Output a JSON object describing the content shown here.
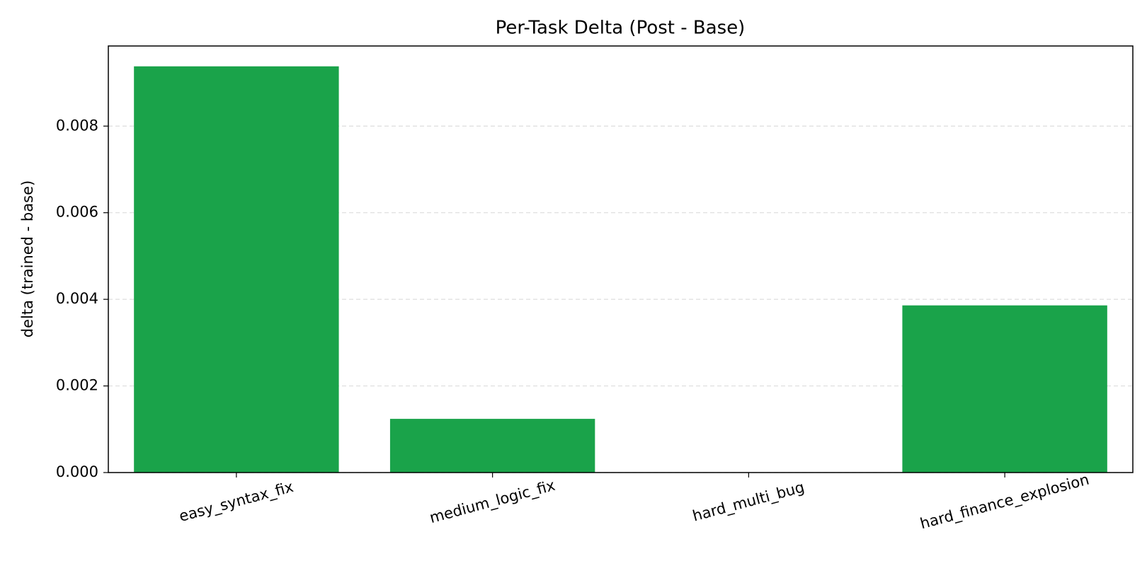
{
  "chart_data": {
    "type": "bar",
    "title": "Per-Task Delta (Post - Base)",
    "y_label": "delta (trained - base)",
    "categories": [
      "easy_syntax_fix",
      "medium_logic_fix",
      "hard_multi_bug",
      "hard_finance_explosion"
    ],
    "values": [
      0.00938,
      0.00124,
      0,
      0.00386
    ],
    "color": "#1aa34a",
    "ylim": [
      0,
      0.00985
    ],
    "yticks": [
      {
        "value": 0,
        "label": "0.000"
      },
      {
        "value": 0.002,
        "label": "0.002"
      },
      {
        "value": 0.004,
        "label": "0.004"
      },
      {
        "value": 0.006,
        "label": "0.006"
      },
      {
        "value": 0.008,
        "label": "0.008"
      }
    ],
    "grid": true
  }
}
